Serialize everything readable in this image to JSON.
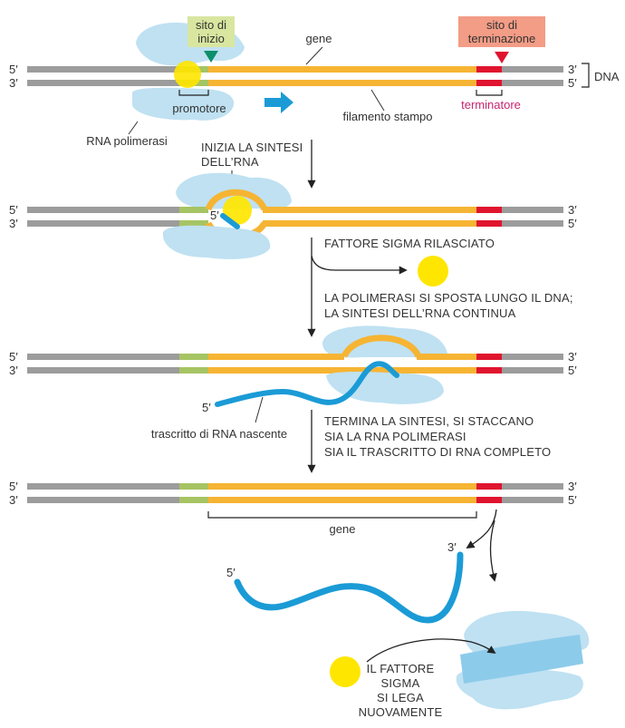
{
  "strand_ends": {
    "top_left": "5′",
    "bottom_left": "3′",
    "top_right": "3′",
    "bottom_right": "5′"
  },
  "labels": {
    "dna": "DNA",
    "gene": "gene",
    "start_site": [
      "sito di",
      "inizio"
    ],
    "termination_site": [
      "sito di",
      "terminazione"
    ],
    "promoter": "promotore",
    "terminator": "terminatore",
    "template_strand": "filamento stampo",
    "rna_polymerase": "RNA polimerasi",
    "nascent_transcript": "trascritto di RNA nascente",
    "rna_5_prime": "5′",
    "rna_3_prime": "3′"
  },
  "steps": {
    "initiate": [
      "INIZIA LA SINTESI",
      "DELL’RNA"
    ],
    "sigma_released": "FATTORE SIGMA RILASCIATO",
    "elongation": [
      "LA POLIMERASI SI SPOSTA LUNGO IL DNA;",
      "LA SINTESI DELL’RNA CONTINUA"
    ],
    "termination": [
      "TERMINA LA SINTESI, SI STACCANO",
      "SIA LA RNA POLIMERASI",
      "SIA IL TRASCRITTO DI RNA COMPLETO"
    ],
    "rebind": [
      "IL FATTORE",
      "SIGMA",
      "SI LEGA",
      "NUOVAMENTE"
    ]
  },
  "colors": {
    "dna_gray": "#9c9c9c",
    "gene_orange": "#f6b433",
    "promoter_green": "#a6c463",
    "terminator_red": "#e0142e",
    "polymerase_blue": "#bfe1f2",
    "rna_blue": "#1b9bd6",
    "sigma_yellow": "#ffe600",
    "start_label_bg": "#d8e6a0",
    "termination_label_bg": "#f39c86",
    "start_arrow": "#0e8f6b",
    "termination_arrow": "#e0142e",
    "terminator_text": "#c8256e"
  }
}
